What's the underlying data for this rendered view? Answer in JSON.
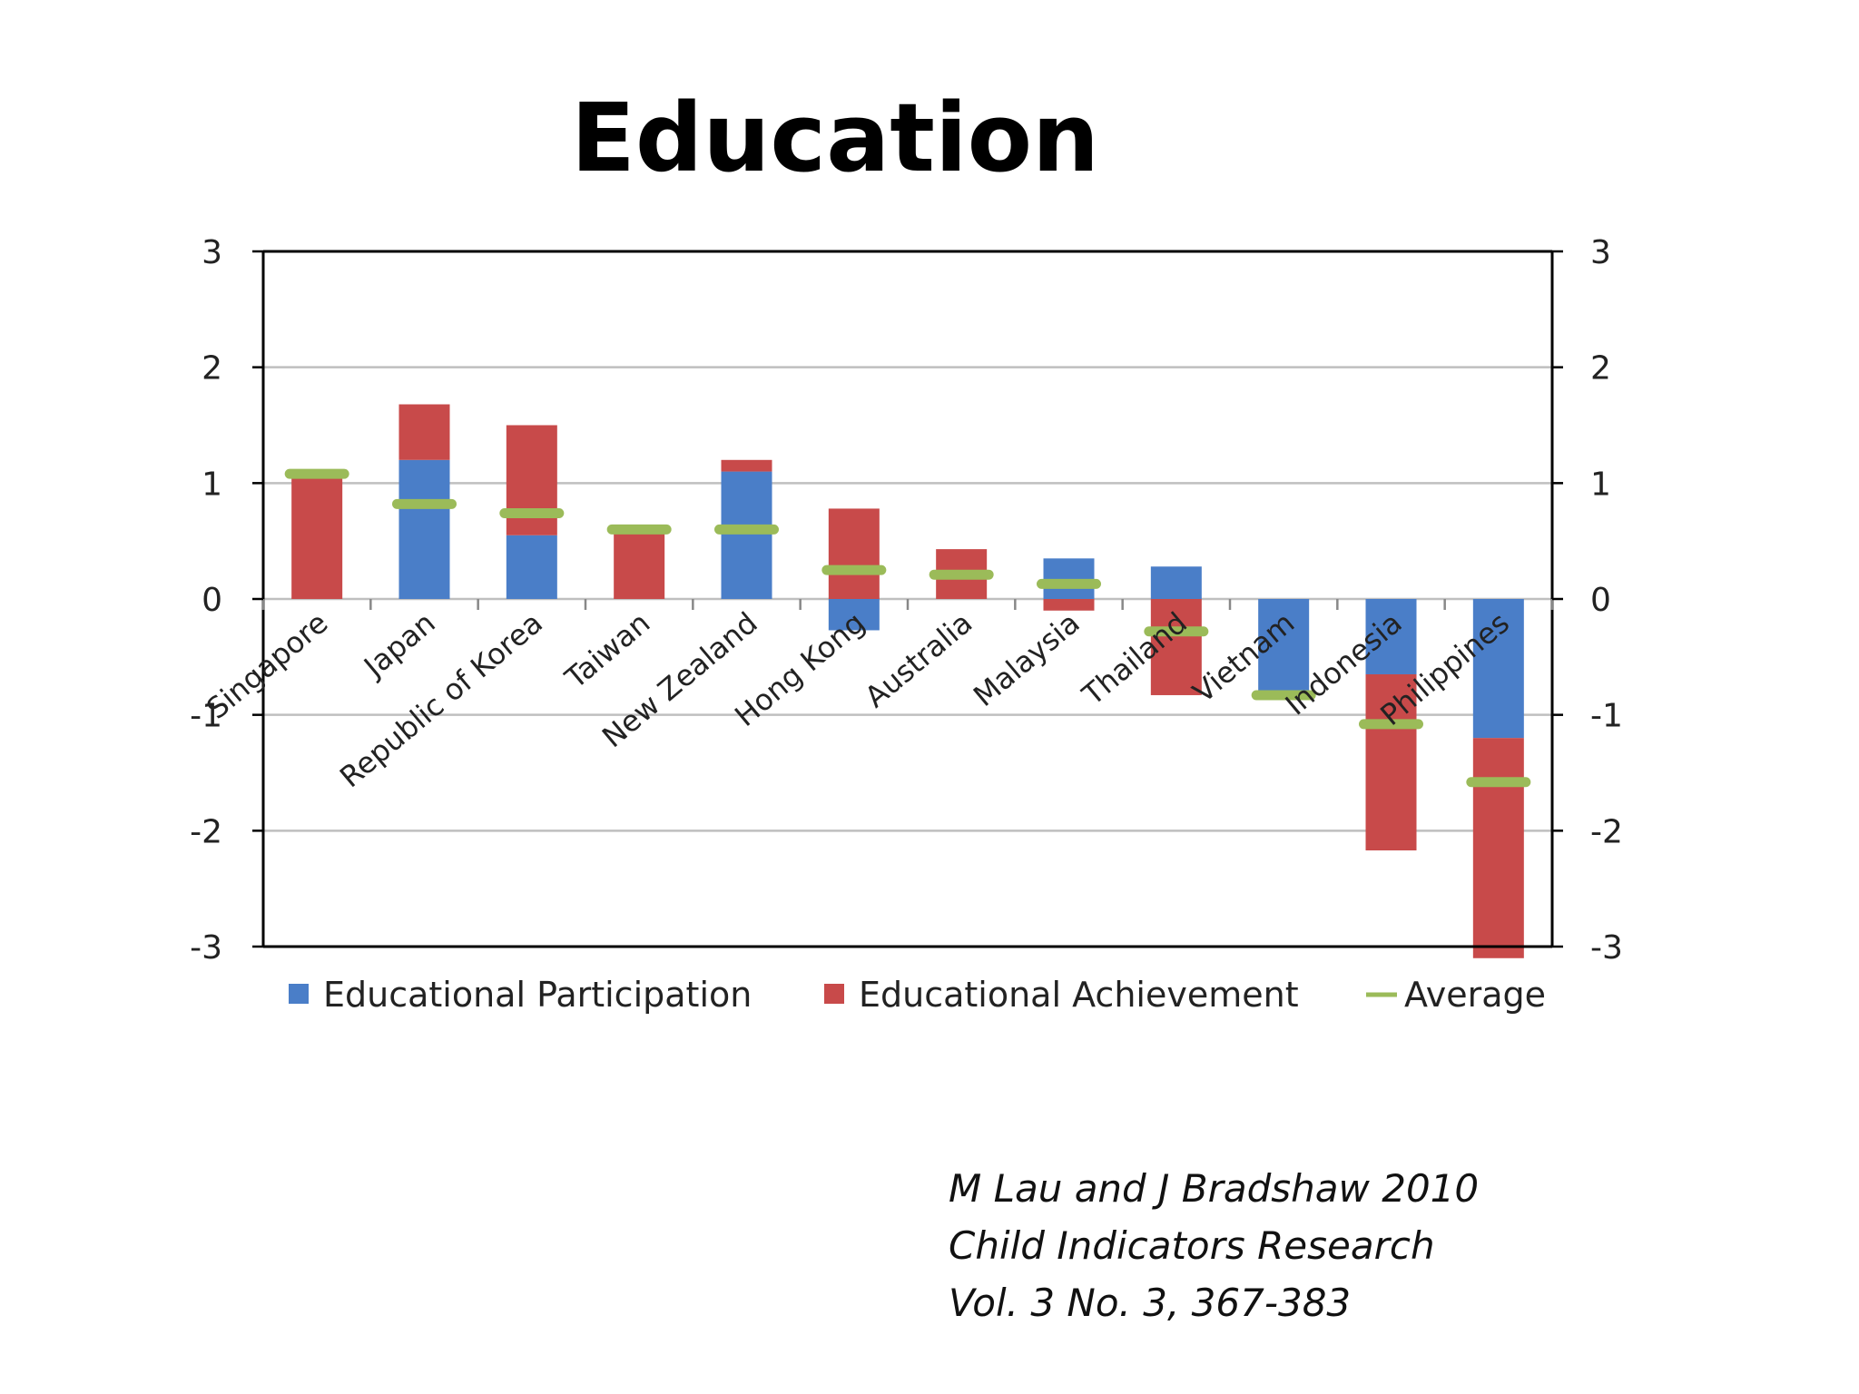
{
  "slide": {
    "title": "Education",
    "citation": [
      "M Lau and J Bradshaw 2010",
      "Child Indicators Research",
      "Vol. 3 No. 3, 367-383"
    ]
  },
  "colors": {
    "participation": "#4a7ec8",
    "achievement": "#c84a4a",
    "average": "#9bbb59",
    "gridline": "#bfbfbf",
    "axis": "#000000"
  },
  "chart_data": {
    "type": "bar",
    "stacked": true,
    "title": "",
    "xlabel": "",
    "ylabel": "",
    "ylim": [
      -3,
      3
    ],
    "yticks": [
      "3",
      "2",
      "1",
      "0",
      "-1",
      "-2",
      "-3"
    ],
    "secondary_yaxis": true,
    "grid": true,
    "legend_position": "bottom",
    "categories": [
      "Singapore",
      "Japan",
      "Republic of Korea",
      "Taiwan",
      "New Zealand",
      "Hong Kong",
      "Australia",
      "Malaysia",
      "Thailand",
      "Vietnam",
      "Indonesia",
      "Philippines"
    ],
    "series": [
      {
        "name": "Educational Participation",
        "kind": "bar",
        "values": [
          0,
          1.2,
          0.55,
          0,
          1.1,
          -0.27,
          0.0,
          0.35,
          0.28,
          -0.85,
          -0.65,
          -1.2
        ]
      },
      {
        "name": "Educational Achievement",
        "kind": "bar",
        "values": [
          1.05,
          0.48,
          0.95,
          0.6,
          0.1,
          0.78,
          0.43,
          -0.1,
          -0.83,
          0,
          -1.52,
          -1.9
        ]
      },
      {
        "name": "Average",
        "kind": "marker",
        "values": [
          1.08,
          0.82,
          0.74,
          0.6,
          0.6,
          0.25,
          0.21,
          0.13,
          -0.28,
          -0.83,
          -1.08,
          -1.58
        ]
      }
    ]
  }
}
